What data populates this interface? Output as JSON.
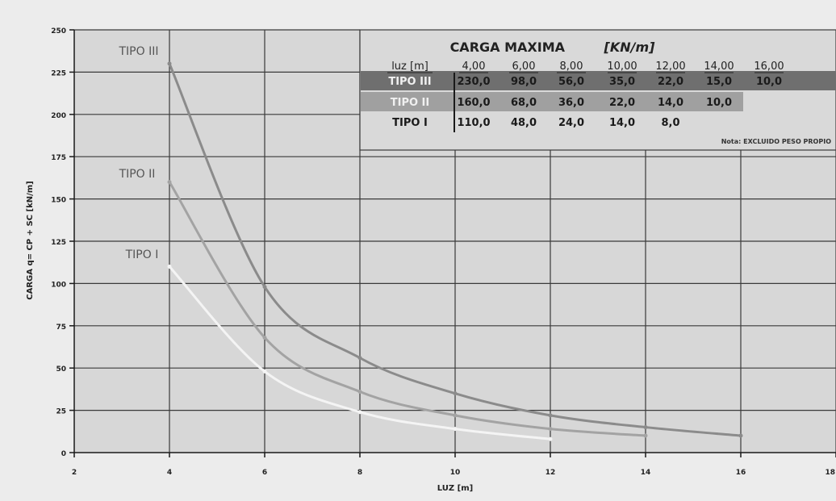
{
  "chart_data": {
    "type": "line",
    "title": "",
    "xlabel": "LUZ [m]",
    "ylabel": "CARGA q= CP + SC [kN/m]",
    "xlim": [
      2,
      18
    ],
    "ylim": [
      0,
      250
    ],
    "x_ticks": [
      "2",
      "4",
      "6",
      "8",
      "10",
      "12",
      "14",
      "16",
      "18"
    ],
    "y_ticks": [
      "0",
      "25",
      "50",
      "75",
      "100",
      "125",
      "150",
      "175",
      "200",
      "225",
      "250"
    ],
    "grid": true,
    "series": [
      {
        "name": "TIPO III",
        "color": "#8b8b8b",
        "x": [
          4,
          6,
          8,
          10,
          12,
          14,
          16
        ],
        "y": [
          230,
          98,
          56,
          35,
          22,
          15,
          10
        ]
      },
      {
        "name": "TIPO II",
        "color": "#a3a3a3",
        "x": [
          4,
          6,
          8,
          10,
          12,
          14
        ],
        "y": [
          160,
          68,
          36,
          22,
          14,
          10
        ]
      },
      {
        "name": "TIPO I",
        "color": "#f4f4f4",
        "x": [
          4,
          6,
          8,
          10,
          12
        ],
        "y": [
          110,
          48,
          24,
          14,
          8
        ]
      }
    ],
    "curve_labels": [
      "TIPO III",
      "TIPO II",
      "TIPO I"
    ],
    "table": {
      "title_main": "CARGA MAXIMA",
      "title_unit": "[KN/m]",
      "header_label": "luz [m]",
      "columns": [
        "4,00",
        "6,00",
        "8,00",
        "10,00",
        "12,00",
        "14,00",
        "16,00"
      ],
      "rows": [
        {
          "label": "TIPO III",
          "values": [
            "230,0",
            "98,0",
            "56,0",
            "35,0",
            "22,0",
            "15,0",
            "10,0"
          ],
          "fill": "#6f6f6f"
        },
        {
          "label": "TIPO II",
          "values": [
            "160,0",
            "68,0",
            "36,0",
            "22,0",
            "14,0",
            "10,0"
          ],
          "fill": "#a0a0a0"
        },
        {
          "label": "TIPO I",
          "values": [
            "110,0",
            "48,0",
            "24,0",
            "14,0",
            "8,0"
          ],
          "fill": "none"
        }
      ],
      "note": "Nota: EXCLUIDO PESO PROPIO"
    }
  }
}
